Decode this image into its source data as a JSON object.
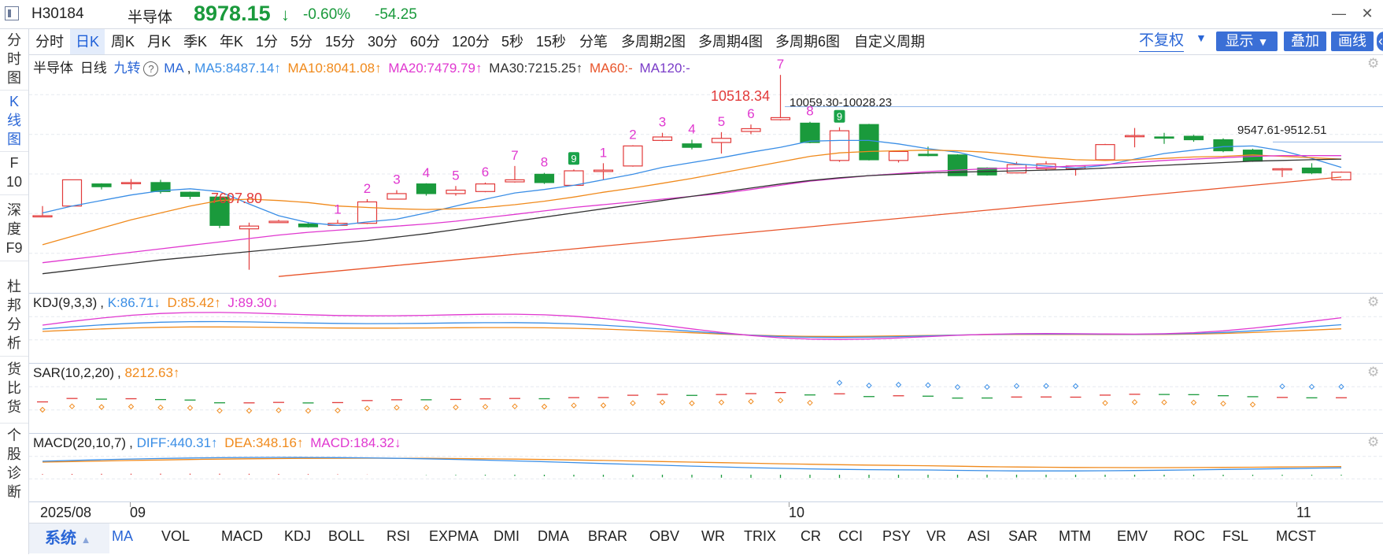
{
  "header": {
    "code": "H30184",
    "name": "半导体",
    "price": "8978.15",
    "arrow": "↓",
    "change_pct": "-0.60%",
    "change_abs": "-54.25",
    "up_color": "#e23b3b",
    "down_color": "#1a9a3c"
  },
  "sidebar": {
    "items": [
      {
        "label": "分\n时\n图"
      },
      {
        "label": "K\n线\n图"
      },
      {
        "label": "F\n10"
      },
      {
        "label": "深\n度\nF9"
      },
      {
        "label": "杜\n邦\n分\n析"
      },
      {
        "label": "货\n比\n货"
      },
      {
        "label": "个\n股\n诊\n断"
      }
    ]
  },
  "period_tabs": [
    "分时",
    "日K",
    "周K",
    "月K",
    "季K",
    "年K",
    "1分",
    "5分",
    "15分",
    "30分",
    "60分",
    "120分",
    "5秒",
    "15秒",
    "分笔",
    "多周期2图",
    "多周期4图",
    "多周期6图",
    "自定义周期"
  ],
  "active_period": "日K",
  "toolbar": {
    "fuquan": "不复权",
    "display": "显示",
    "overlay": "叠加",
    "draw": "画线"
  },
  "kline_panel": {
    "name": "半导体",
    "period": "日线",
    "nine_turn": "九转",
    "help": "?",
    "ma_label": "MA",
    "ma5": "MA5:8487.14↑",
    "ma10": "MA10:8041.08↑",
    "ma20": "MA20:7479.79↑",
    "ma30": "MA30:7215.25↑",
    "ma60": "MA60:-",
    "ma120": "MA120:-",
    "annotations": {
      "low": "7697.80",
      "high": "10518.34",
      "mark1": "10059.30-10028.23",
      "mark2": "9547.61-9512.51"
    }
  },
  "kdj_panel": {
    "name": "KDJ(9,3,3)",
    "k": "K:86.71↓",
    "d": "D:85.42↑",
    "j": "J:89.30↓"
  },
  "sar_panel": {
    "name": "SAR(10,2,20)",
    "value": "8212.63↑"
  },
  "macd_panel": {
    "name": "MACD(20,10,7)",
    "diff": "DIFF:440.31↑",
    "dea": "DEA:348.16↑",
    "macd": "MACD:184.32↓"
  },
  "time_axis": {
    "year_month": "2025/08",
    "m09": "09",
    "m10": "10",
    "m11": "11"
  },
  "indicators": {
    "system": "系统",
    "items": [
      "MA",
      "VOL",
      "MACD",
      "KDJ",
      "BOLL",
      "RSI",
      "EXPMA",
      "DMI",
      "DMA",
      "BRAR",
      "OBV",
      "WR",
      "TRIX",
      "CR",
      "CCI",
      "PSY",
      "VR",
      "ASI",
      "SAR",
      "MTM",
      "EMV",
      "ROC",
      "FSL",
      "MCST"
    ],
    "active": "MA"
  },
  "chart_data": {
    "type": "candlestick",
    "price_range": [
      7500,
      10600
    ],
    "candles": [
      {
        "o": 8480,
        "c": 8480,
        "h": 8620,
        "l": 8470
      },
      {
        "o": 8620,
        "c": 9000,
        "h": 9000,
        "l": 8620
      },
      {
        "o": 8940,
        "c": 8900,
        "h": 8950,
        "l": 8860
      },
      {
        "o": 8960,
        "c": 8960,
        "h": 9010,
        "l": 8860
      },
      {
        "o": 8960,
        "c": 8830,
        "h": 9000,
        "l": 8800
      },
      {
        "o": 8820,
        "c": 8760,
        "h": 8830,
        "l": 8720
      },
      {
        "o": 8750,
        "c": 8340,
        "h": 8760,
        "l": 8300
      },
      {
        "o": 8290,
        "c": 8330,
        "h": 8380,
        "l": 7697.8
      },
      {
        "o": 8380,
        "c": 8400,
        "h": 8420,
        "l": 8380
      },
      {
        "o": 8360,
        "c": 8320,
        "h": 8390,
        "l": 8310
      },
      {
        "o": 8340,
        "c": 8370,
        "h": 8420,
        "l": 8340
      },
      {
        "o": 8370,
        "c": 8680,
        "h": 8720,
        "l": 8360
      },
      {
        "o": 8720,
        "c": 8800,
        "h": 8850,
        "l": 8720
      },
      {
        "o": 8940,
        "c": 8800,
        "h": 8950,
        "l": 8770
      },
      {
        "o": 8800,
        "c": 8850,
        "h": 8910,
        "l": 8770
      },
      {
        "o": 8830,
        "c": 8940,
        "h": 8960,
        "l": 8820
      },
      {
        "o": 8970,
        "c": 9000,
        "h": 9200,
        "l": 8960
      },
      {
        "o": 9080,
        "c": 8960,
        "h": 9100,
        "l": 8940
      },
      {
        "o": 8920,
        "c": 9130,
        "h": 9150,
        "l": 8920
      },
      {
        "o": 9120,
        "c": 9140,
        "h": 9240,
        "l": 9000
      },
      {
        "o": 9200,
        "c": 9490,
        "h": 9500,
        "l": 9190
      },
      {
        "o": 9570,
        "c": 9620,
        "h": 9680,
        "l": 9560
      },
      {
        "o": 9520,
        "c": 9470,
        "h": 9580,
        "l": 9440
      },
      {
        "o": 9540,
        "c": 9600,
        "h": 9690,
        "l": 9380
      },
      {
        "o": 9700,
        "c": 9740,
        "h": 9800,
        "l": 9660
      },
      {
        "o": 9870,
        "c": 9900,
        "h": 10518.34,
        "l": 9860
      },
      {
        "o": 9820,
        "c": 9540,
        "h": 9840,
        "l": 9530
      },
      {
        "o": 9280,
        "c": 9710,
        "h": 9760,
        "l": 9260
      },
      {
        "o": 9800,
        "c": 9290,
        "h": 9810,
        "l": 9280
      },
      {
        "o": 9280,
        "c": 9410,
        "h": 9420,
        "l": 9250
      },
      {
        "o": 9370,
        "c": 9350,
        "h": 9480,
        "l": 9340
      },
      {
        "o": 9360,
        "c": 9060,
        "h": 9370,
        "l": 9060
      },
      {
        "o": 9170,
        "c": 9070,
        "h": 9180,
        "l": 9060
      },
      {
        "o": 9100,
        "c": 9220,
        "h": 9260,
        "l": 9100
      },
      {
        "o": 9160,
        "c": 9230,
        "h": 9270,
        "l": 9130
      },
      {
        "o": 9160,
        "c": 9200,
        "h": 9210,
        "l": 9060
      },
      {
        "o": 9290,
        "c": 9510,
        "h": 9520,
        "l": 9280
      },
      {
        "o": 9630,
        "c": 9640,
        "h": 9750,
        "l": 9470
      },
      {
        "o": 9620,
        "c": 9610,
        "h": 9680,
        "l": 9520
      },
      {
        "o": 9630,
        "c": 9580,
        "h": 9650,
        "l": 9550
      },
      {
        "o": 9580,
        "c": 9420,
        "h": 9600,
        "l": 9400
      },
      {
        "o": 9430,
        "c": 9270,
        "h": 9450,
        "l": 9260
      },
      {
        "o": 9160,
        "c": 9160,
        "h": 9170,
        "l": 9040
      },
      {
        "o": 9170,
        "c": 9100,
        "h": 9240,
        "l": 9080
      },
      {
        "o": 9000,
        "c": 9110,
        "h": 9120,
        "l": 8990
      }
    ],
    "nine_turn_numbers": [
      {
        "i": 10,
        "n": "1"
      },
      {
        "i": 11,
        "n": "2"
      },
      {
        "i": 12,
        "n": "3"
      },
      {
        "i": 13,
        "n": "4"
      },
      {
        "i": 14,
        "n": "5"
      },
      {
        "i": 15,
        "n": "6"
      },
      {
        "i": 16,
        "n": "7"
      },
      {
        "i": 17,
        "n": "8"
      },
      {
        "i": 18,
        "n": "9",
        "g": true
      },
      {
        "i": 19,
        "n": "1"
      },
      {
        "i": 20,
        "n": "2"
      },
      {
        "i": 21,
        "n": "3"
      },
      {
        "i": 22,
        "n": "4"
      },
      {
        "i": 23,
        "n": "5"
      },
      {
        "i": 24,
        "n": "6"
      },
      {
        "i": 25,
        "n": "7"
      },
      {
        "i": 26,
        "n": "8"
      },
      {
        "i": 27,
        "n": "9",
        "g": true
      }
    ],
    "ma5": [
      8520,
      8620,
      8700,
      8780,
      8840,
      8870,
      8830,
      8650,
      8480,
      8380,
      8340,
      8390,
      8430,
      8520,
      8620,
      8720,
      8810,
      8860,
      8920,
      9000,
      9080,
      9180,
      9250,
      9320,
      9400,
      9470,
      9560,
      9570,
      9570,
      9520,
      9450,
      9400,
      9300,
      9230,
      9200,
      9170,
      9210,
      9300,
      9380,
      9430,
      9480,
      9490,
      9420,
      9310,
      9180
    ],
    "ma10": [
      8060,
      8180,
      8300,
      8420,
      8520,
      8620,
      8700,
      8720,
      8700,
      8670,
      8620,
      8600,
      8580,
      8570,
      8580,
      8600,
      8640,
      8690,
      8750,
      8820,
      8880,
      8950,
      9020,
      9100,
      9180,
      9260,
      9340,
      9390,
      9410,
      9420,
      9430,
      9420,
      9400,
      9360,
      9320,
      9290,
      9280,
      9290,
      9310,
      9330,
      9340,
      9360,
      9340,
      9320,
      9300
    ],
    "ma20": [
      7800,
      7850,
      7900,
      7950,
      8000,
      8050,
      8100,
      8150,
      8200,
      8240,
      8270,
      8300,
      8330,
      8360,
      8400,
      8450,
      8500,
      8550,
      8600,
      8640,
      8680,
      8720,
      8760,
      8800,
      8860,
      8920,
      8980,
      9020,
      9060,
      9090,
      9120,
      9140,
      9160,
      9170,
      9180,
      9200,
      9220,
      9250,
      9280,
      9300,
      9320,
      9340,
      9350,
      9350,
      9350
    ],
    "ma30": [
      7640,
      7690,
      7740,
      7790,
      7840,
      7880,
      7920,
      7960,
      8000,
      8040,
      8080,
      8120,
      8170,
      8220,
      8280,
      8340,
      8400,
      8460,
      8520,
      8580,
      8640,
      8700,
      8760,
      8820,
      8880,
      8940,
      8990,
      9030,
      9060,
      9080,
      9100,
      9110,
      9120,
      9130,
      9140,
      9150,
      9170,
      9190,
      9210,
      9230,
      9250,
      9270,
      9280,
      9290,
      9300
    ],
    "ma60_start_index": 8,
    "ma60": [
      7600,
      7640,
      7680,
      7720,
      7760,
      7800,
      7840,
      7880,
      7920,
      7960,
      8000,
      8040,
      8080,
      8120,
      8160,
      8200,
      8240,
      8280,
      8320,
      8360,
      8400,
      8440,
      8480,
      8520,
      8560,
      8600,
      8640,
      8680,
      8720,
      8760,
      8800,
      8840,
      8880,
      8920,
      8960,
      9000,
      9040
    ]
  }
}
